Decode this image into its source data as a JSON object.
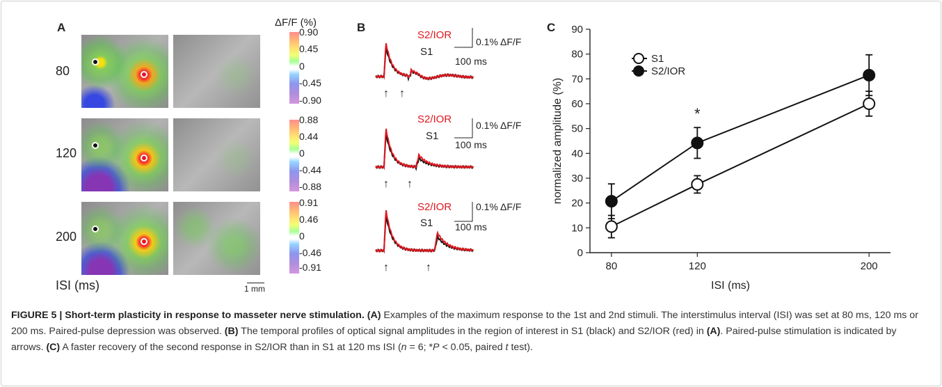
{
  "panelA": {
    "letter": "A",
    "colorbar_title": "ΔF/F (%)",
    "rows": [
      {
        "isi": "80",
        "ticks": [
          "0.90",
          "0.45",
          "0",
          "-0.45",
          "-0.90"
        ]
      },
      {
        "isi": "120",
        "ticks": [
          "0.88",
          "0.44",
          "0",
          "-0.44",
          "-0.88"
        ]
      },
      {
        "isi": "200",
        "ticks": [
          "0.91",
          "0.46",
          "0",
          "-0.46",
          "-0.91"
        ]
      }
    ],
    "axis_label": "ISI (ms)",
    "scale_label": "1 mm"
  },
  "panelB": {
    "letter": "B",
    "rows": [
      {
        "red_label": "S2/IOR",
        "black_label": "S1",
        "scale_y": "0.1% ΔF/F",
        "scale_x": "100 ms",
        "arrow": "↑"
      },
      {
        "red_label": "S2/IOR",
        "black_label": "S1",
        "scale_y": "0.1% ΔF/F",
        "scale_x": "100 ms",
        "arrow": "↑"
      },
      {
        "red_label": "S2/IOR",
        "black_label": "S1",
        "scale_y": "0.1% ΔF/F",
        "scale_x": "100 ms",
        "arrow": "↑"
      }
    ],
    "colors": {
      "red": "#e0181f",
      "black": "#111111"
    }
  },
  "chart_data": {
    "type": "line",
    "panel_letter": "C",
    "x": [
      80,
      120,
      200
    ],
    "series": [
      {
        "name": "S1",
        "values": [
          10.5,
          27.5,
          60
        ],
        "errors": [
          4.5,
          3.5,
          5
        ],
        "marker": "open-circle"
      },
      {
        "name": "S2/IOR",
        "values": [
          20.7,
          44.2,
          71.5
        ],
        "errors": [
          7,
          6.2,
          8.2
        ],
        "marker": "filled-circle"
      }
    ],
    "xlabel": "ISI (ms)",
    "ylabel": "normalized amplitude (%)",
    "ylim": [
      0,
      90
    ],
    "yticks": [
      "0",
      "10",
      "20",
      "30",
      "40",
      "50",
      "60",
      "70",
      "80",
      "90"
    ],
    "xticks": [
      "80",
      "120",
      "200"
    ],
    "significance": {
      "x": 120,
      "label": "*"
    },
    "legend_position": "top-left"
  },
  "caption": {
    "title": "FIGURE 5 | Short-term plasticity in response to masseter nerve stimulation.",
    "refA": "(A)",
    "textA": " Examples of the maximum response to the 1st and 2nd stimuli. The interstimulus interval (ISI) was set at 80 ms, 120 ms or 200 ms. Paired-pulse depression was observed. ",
    "refB": "(B)",
    "textB1": " The temporal profiles of optical signal amplitudes in the region of interest in S1 (black) and S2/IOR (red) in ",
    "refB2": "(A)",
    "textB2": ". Paired-pulse stimulation is indicated by arrows. ",
    "refC": "(C)",
    "textC1": " A faster recovery of the second response in S2/IOR than in S1 at 120 ms ISI (",
    "n_italic": "n",
    "textC2": " = 6; *",
    "p_italic": "P",
    "textC3": " < 0.05, paired ",
    "t_italic": "t",
    "textC4": " test)."
  }
}
